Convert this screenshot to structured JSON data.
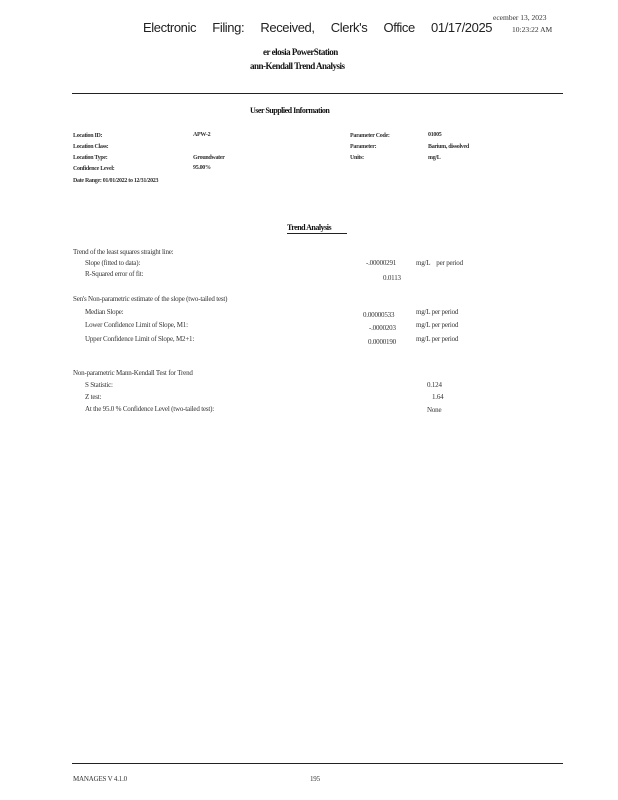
{
  "stamp": "Electronic Filing: Received, Clerk's Office 01/17/2025",
  "report_date": "ecember 13, 2023",
  "report_time": "10:23:22 AM",
  "title_line1": "er elosia PowerStation",
  "title_line2": "ann-Kendall Trend Analysis",
  "user_info": {
    "heading": "User Supplied Information",
    "location_id_label": "Location ID:",
    "location_id": "APW-2",
    "location_class_label": "Location Class:",
    "location_type_label": "Location Type:",
    "location_type": "Groundwater",
    "confidence_label": "Confidence Level:",
    "confidence": "95.00%",
    "date_range": "Date Range: 01/01/2022 to 12/31/2023",
    "param_code_label": "Parameter Code:",
    "param_code": "01005",
    "parameter_label": "Parameter:",
    "parameter": "Barium, dissolved",
    "units_label": "Units:",
    "units": "mg/L"
  },
  "trend": {
    "heading": "Trend Analysis",
    "ls_heading": "Trend of the least squares straight line:",
    "slope_label": "Slope (fitted to data):",
    "slope": "-.00000291",
    "slope_unit": "mg/L    per period",
    "rsq_label": "R-Squared error of fit:",
    "rsq": "0.0113",
    "sen_heading": "Sen's Non-parametric estimate of the slope (two-tailed test)",
    "median_label": "Median Slope:",
    "median": "0.00000533",
    "median_unit": "mg/L per period",
    "lcl_label": "Lower Confidence Limit of Slope, M1:",
    "lcl": "-.0000203",
    "lcl_unit": "mg/L per period",
    "ucl_label": "Upper Confidence Limit of Slope, M2+1:",
    "ucl": "0.0000190",
    "ucl_unit": "mg/L per period",
    "mk_heading": "Non-parametric Mann-Kendall Test for Trend",
    "s_label": "S Statistic:",
    "s": "0.124",
    "z_label": "Z test:",
    "z": "1.64",
    "conf_label": "At the 95.0 % Confidence Level (two-tailed test):",
    "conf": "None"
  },
  "footer": {
    "version": "MANAGES V 4.1.0",
    "page": "195"
  }
}
